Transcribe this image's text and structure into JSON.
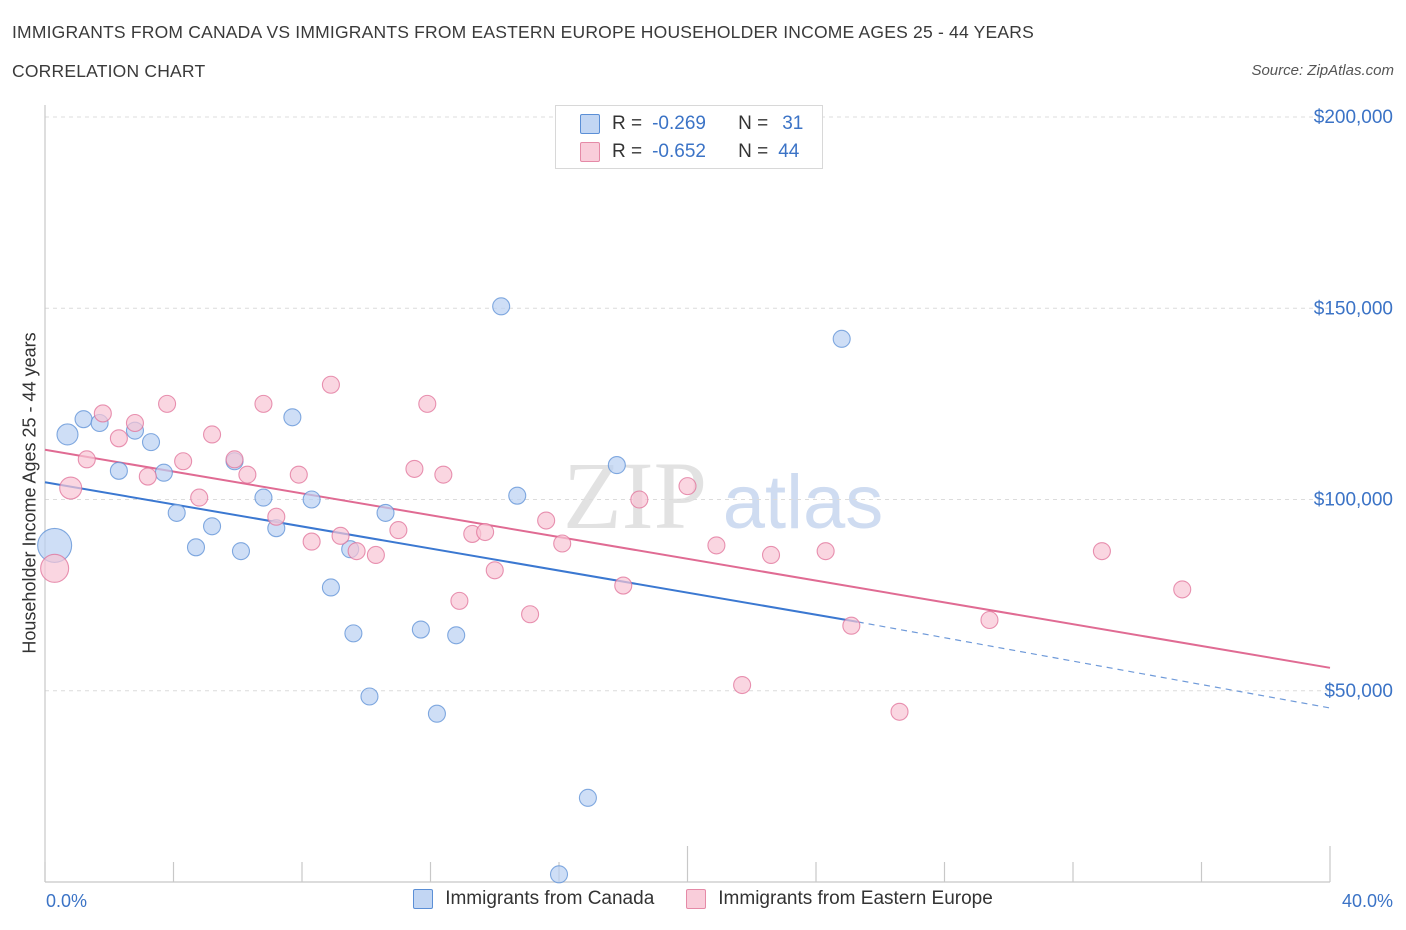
{
  "title": "IMMIGRANTS FROM CANADA VS IMMIGRANTS FROM EASTERN EUROPE HOUSEHOLDER INCOME AGES 25 - 44 YEARS",
  "subtitle": "CORRELATION CHART",
  "source": "Source: ZipAtlas.com",
  "watermark": {
    "zip": "ZIP",
    "atlas": "atlas"
  },
  "legend": {
    "rows": [
      {
        "r_label": "R =",
        "r_value": "-0.269",
        "n_label": "N =",
        "n_value": "31",
        "color": "#5b8fd6"
      },
      {
        "r_label": "R =",
        "r_value": "-0.652",
        "n_label": "N =",
        "n_value": "44",
        "color": "#e58aa7"
      }
    ]
  },
  "x_axis": {
    "min_label": "0.0%",
    "max_label": "40.0%"
  },
  "y_axis_label": "Householder Income Ages 25 - 44 years",
  "colors": {
    "canada": "#5b8fd6",
    "canada_fill": "#b9d0f2",
    "europe": "#e07098",
    "europe_fill": "#f8c4d4",
    "tick_label": "#3b73c6"
  },
  "chart_data": {
    "type": "scatter",
    "xlim": [
      0,
      40
    ],
    "ylim": [
      0,
      200000
    ],
    "y_ticks": [
      {
        "value": 50000,
        "label": "$50,000"
      },
      {
        "value": 100000,
        "label": "$100,000"
      },
      {
        "value": 150000,
        "label": "$150,000"
      },
      {
        "value": 200000,
        "label": "$200,000"
      }
    ],
    "series": [
      {
        "name": "Immigrants from Canada",
        "points": [
          [
            0.3,
            88000
          ],
          [
            0.7,
            117000
          ],
          [
            1.2,
            121000
          ],
          [
            1.7,
            120000
          ],
          [
            2.3,
            107500
          ],
          [
            2.8,
            118000
          ],
          [
            3.3,
            115000
          ],
          [
            3.7,
            107000
          ],
          [
            4.1,
            96500
          ],
          [
            4.7,
            87500
          ],
          [
            5.2,
            93000
          ],
          [
            5.9,
            110000
          ],
          [
            6.1,
            86500
          ],
          [
            6.8,
            100500
          ],
          [
            7.2,
            92500
          ],
          [
            7.7,
            121500
          ],
          [
            8.3,
            100000
          ],
          [
            8.9,
            77000
          ],
          [
            9.5,
            87000
          ],
          [
            9.6,
            65000
          ],
          [
            10.1,
            48500
          ],
          [
            10.6,
            96500
          ],
          [
            11.7,
            66000
          ],
          [
            12.2,
            44000
          ],
          [
            12.8,
            64500
          ],
          [
            14.2,
            150500
          ],
          [
            14.7,
            101000
          ],
          [
            16.0,
            2000
          ],
          [
            16.9,
            22000
          ],
          [
            17.8,
            109000
          ],
          [
            24.8,
            142000
          ]
        ],
        "trend": {
          "x0": 0,
          "y0": 104500,
          "x1": 25.3,
          "y1": 68000,
          "dash_to_x": 40,
          "dash_to_y": 45500
        }
      },
      {
        "name": "Immigrants from Eastern Europe",
        "points": [
          [
            0.3,
            82000
          ],
          [
            0.8,
            103000
          ],
          [
            1.3,
            110500
          ],
          [
            1.8,
            122500
          ],
          [
            2.3,
            116000
          ],
          [
            2.8,
            120000
          ],
          [
            3.2,
            106000
          ],
          [
            3.8,
            125000
          ],
          [
            4.3,
            110000
          ],
          [
            4.8,
            100500
          ],
          [
            5.2,
            117000
          ],
          [
            5.9,
            110500
          ],
          [
            6.3,
            106500
          ],
          [
            6.8,
            125000
          ],
          [
            7.2,
            95500
          ],
          [
            7.9,
            106500
          ],
          [
            8.3,
            89000
          ],
          [
            8.9,
            130000
          ],
          [
            9.2,
            90500
          ],
          [
            9.7,
            86500
          ],
          [
            10.3,
            85500
          ],
          [
            11.0,
            92000
          ],
          [
            11.5,
            108000
          ],
          [
            11.9,
            125000
          ],
          [
            12.4,
            106500
          ],
          [
            12.9,
            73500
          ],
          [
            13.3,
            91000
          ],
          [
            13.7,
            91500
          ],
          [
            14.0,
            81500
          ],
          [
            15.1,
            70000
          ],
          [
            15.6,
            94500
          ],
          [
            16.1,
            88500
          ],
          [
            18.0,
            77500
          ],
          [
            18.5,
            100000
          ],
          [
            20.0,
            103500
          ],
          [
            20.9,
            88000
          ],
          [
            21.7,
            51500
          ],
          [
            22.6,
            85500
          ],
          [
            24.3,
            86500
          ],
          [
            25.1,
            67000
          ],
          [
            26.6,
            44500
          ],
          [
            29.4,
            68500
          ],
          [
            32.9,
            86500
          ],
          [
            35.4,
            76500
          ]
        ],
        "trend": {
          "x0": 0,
          "y0": 113000,
          "x1": 40,
          "y1": 56000
        }
      }
    ]
  }
}
